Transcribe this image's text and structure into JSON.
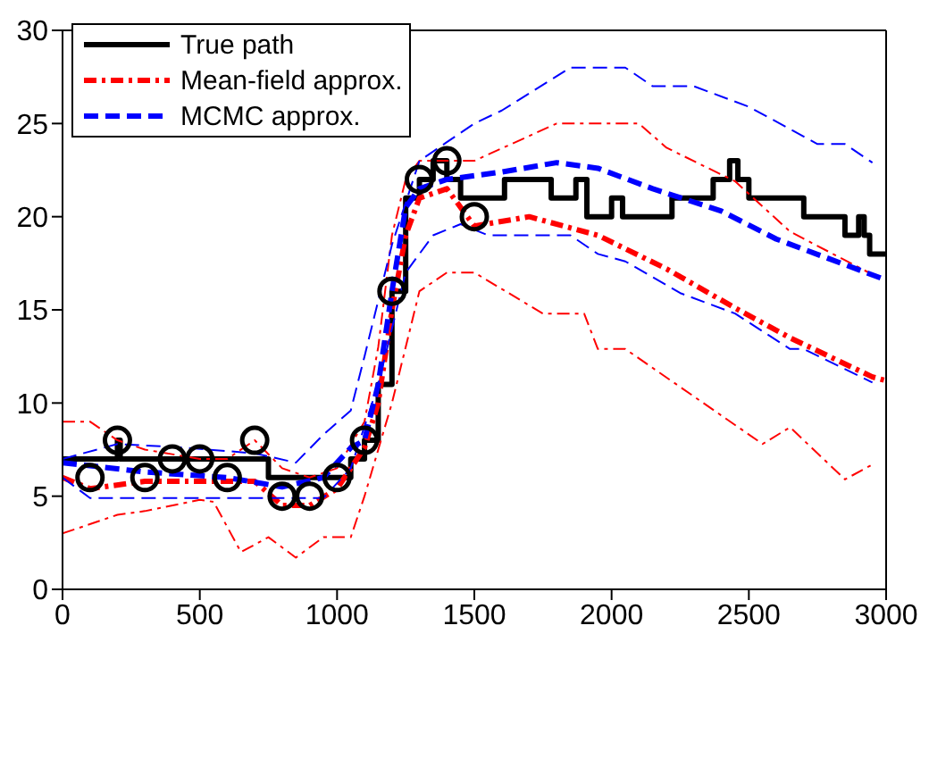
{
  "chart_data": {
    "type": "line",
    "xlim": [
      0,
      3000
    ],
    "xticks": [
      0,
      500,
      1000,
      1500,
      2000,
      2500,
      3000
    ],
    "ylim": [
      0,
      30
    ],
    "yticks": [
      0,
      5,
      10,
      15,
      20,
      25,
      30
    ],
    "legend": "top left",
    "series": [
      {
        "name": "True path",
        "type": "step",
        "color": "#000000",
        "line_style": "solid",
        "marker": "none",
        "x": [
          0,
          150,
          200,
          210,
          700,
          750,
          1000,
          1050,
          1100,
          1150,
          1200,
          1250,
          1300,
          1350,
          1400,
          1450,
          1610,
          1780,
          1870,
          1910,
          2000,
          2040,
          2220,
          2250,
          2370,
          2430,
          2460,
          2500,
          2700,
          2850,
          2900,
          2920,
          2940,
          3000
        ],
        "values": [
          7,
          7,
          8,
          7,
          7,
          6,
          6,
          7,
          8,
          11,
          16,
          21,
          22,
          23,
          22,
          21,
          22,
          21,
          22,
          20,
          21,
          20,
          21,
          21,
          22,
          23,
          22,
          21,
          20,
          19,
          20,
          19,
          18,
          18
        ]
      },
      {
        "type": "scatter",
        "color": "#000000",
        "marker": "circle",
        "x": [
          100,
          200,
          300,
          400,
          500,
          600,
          700,
          800,
          900,
          1000,
          1100,
          1200,
          1300,
          1400,
          1500
        ],
        "values": [
          6,
          8,
          6,
          7,
          7,
          6,
          8,
          5,
          5,
          6,
          8,
          16,
          22,
          23,
          20
        ]
      },
      {
        "name": "Mean-field approx.",
        "color": "#ff0000",
        "line_style": "dashdot",
        "marker": "none",
        "x": [
          0,
          100,
          300,
          500,
          700,
          800,
          900,
          1000,
          1100,
          1150,
          1200,
          1250,
          1300,
          1400,
          1500,
          1700,
          1950,
          2200,
          2450,
          2650,
          2950,
          3000
        ],
        "values": [
          6,
          5.4,
          5.8,
          5.8,
          5.8,
          4.5,
          4.5,
          5.4,
          7.6,
          10,
          15,
          19,
          21,
          21.5,
          19.5,
          20,
          19,
          17.2,
          15.1,
          13.5,
          11.4,
          11.2
        ]
      },
      {
        "color": "#ff0000",
        "line_style": "dashdot",
        "marker": "none",
        "x": [
          0,
          100,
          200,
          300,
          500,
          600,
          700,
          800,
          900,
          1000,
          1100,
          1150,
          1200,
          1250,
          1300,
          1500,
          1800,
          2100,
          2200,
          2450,
          2650,
          2950
        ],
        "values": [
          9,
          9,
          8,
          7.5,
          7,
          7,
          8,
          6.5,
          6,
          6.5,
          9,
          13,
          19,
          22,
          23,
          23,
          25,
          25,
          23.7,
          21.9,
          19.2,
          16.9
        ]
      },
      {
        "color": "#ff0000",
        "line_style": "dashdot",
        "marker": "none",
        "x": [
          0,
          200,
          300,
          500,
          550,
          650,
          750,
          850,
          950,
          1050,
          1100,
          1200,
          1300,
          1400,
          1500,
          1750,
          1900,
          1950,
          2050,
          2550,
          2650,
          2850,
          2950
        ],
        "values": [
          3,
          4,
          4.2,
          4.8,
          4.7,
          2,
          2.8,
          1.7,
          2.8,
          2.8,
          5,
          10,
          16,
          17,
          17,
          14.8,
          14.8,
          12.9,
          12.9,
          7.8,
          8.7,
          5.9,
          6.7
        ]
      },
      {
        "name": "MCMC approx.",
        "color": "#0000ff",
        "line_style": "dashed",
        "marker": "none",
        "x": [
          0,
          300,
          600,
          800,
          950,
          1050,
          1100,
          1150,
          1200,
          1250,
          1300,
          1400,
          1600,
          1800,
          1950,
          2150,
          2400,
          2600,
          3000
        ],
        "values": [
          6.8,
          6.3,
          6,
          5.5,
          6,
          7.6,
          8,
          11,
          16,
          20.5,
          21.5,
          22,
          22.4,
          22.9,
          22.6,
          21.5,
          20.3,
          18.8,
          16.6
        ]
      },
      {
        "color": "#0000ff",
        "line_style": "dashed",
        "marker": "none",
        "x": [
          0,
          200,
          450,
          700,
          850,
          950,
          1050,
          1100,
          1200,
          1300,
          1400,
          1500,
          1600,
          1850,
          2050,
          2150,
          2300,
          2500,
          2750,
          2850,
          2950
        ],
        "values": [
          7,
          7.8,
          7.6,
          7.3,
          6.8,
          8.3,
          9.6,
          12.5,
          18.5,
          23,
          24,
          25,
          25.7,
          28,
          28,
          27,
          27,
          25.9,
          23.9,
          23.9,
          22.9
        ]
      },
      {
        "color": "#0000ff",
        "line_style": "dashed",
        "marker": "none",
        "x": [
          0,
          100,
          400,
          600,
          950,
          1050,
          1150,
          1250,
          1350,
          1450,
          1550,
          1850,
          1950,
          2050,
          2250,
          2450,
          2650,
          2700,
          2950
        ],
        "values": [
          6,
          4.9,
          4.9,
          4.9,
          4.9,
          6.5,
          11,
          17,
          19,
          19.6,
          19,
          19,
          18,
          17.6,
          15.9,
          14.8,
          12.9,
          12.9,
          11.1
        ]
      }
    ]
  }
}
